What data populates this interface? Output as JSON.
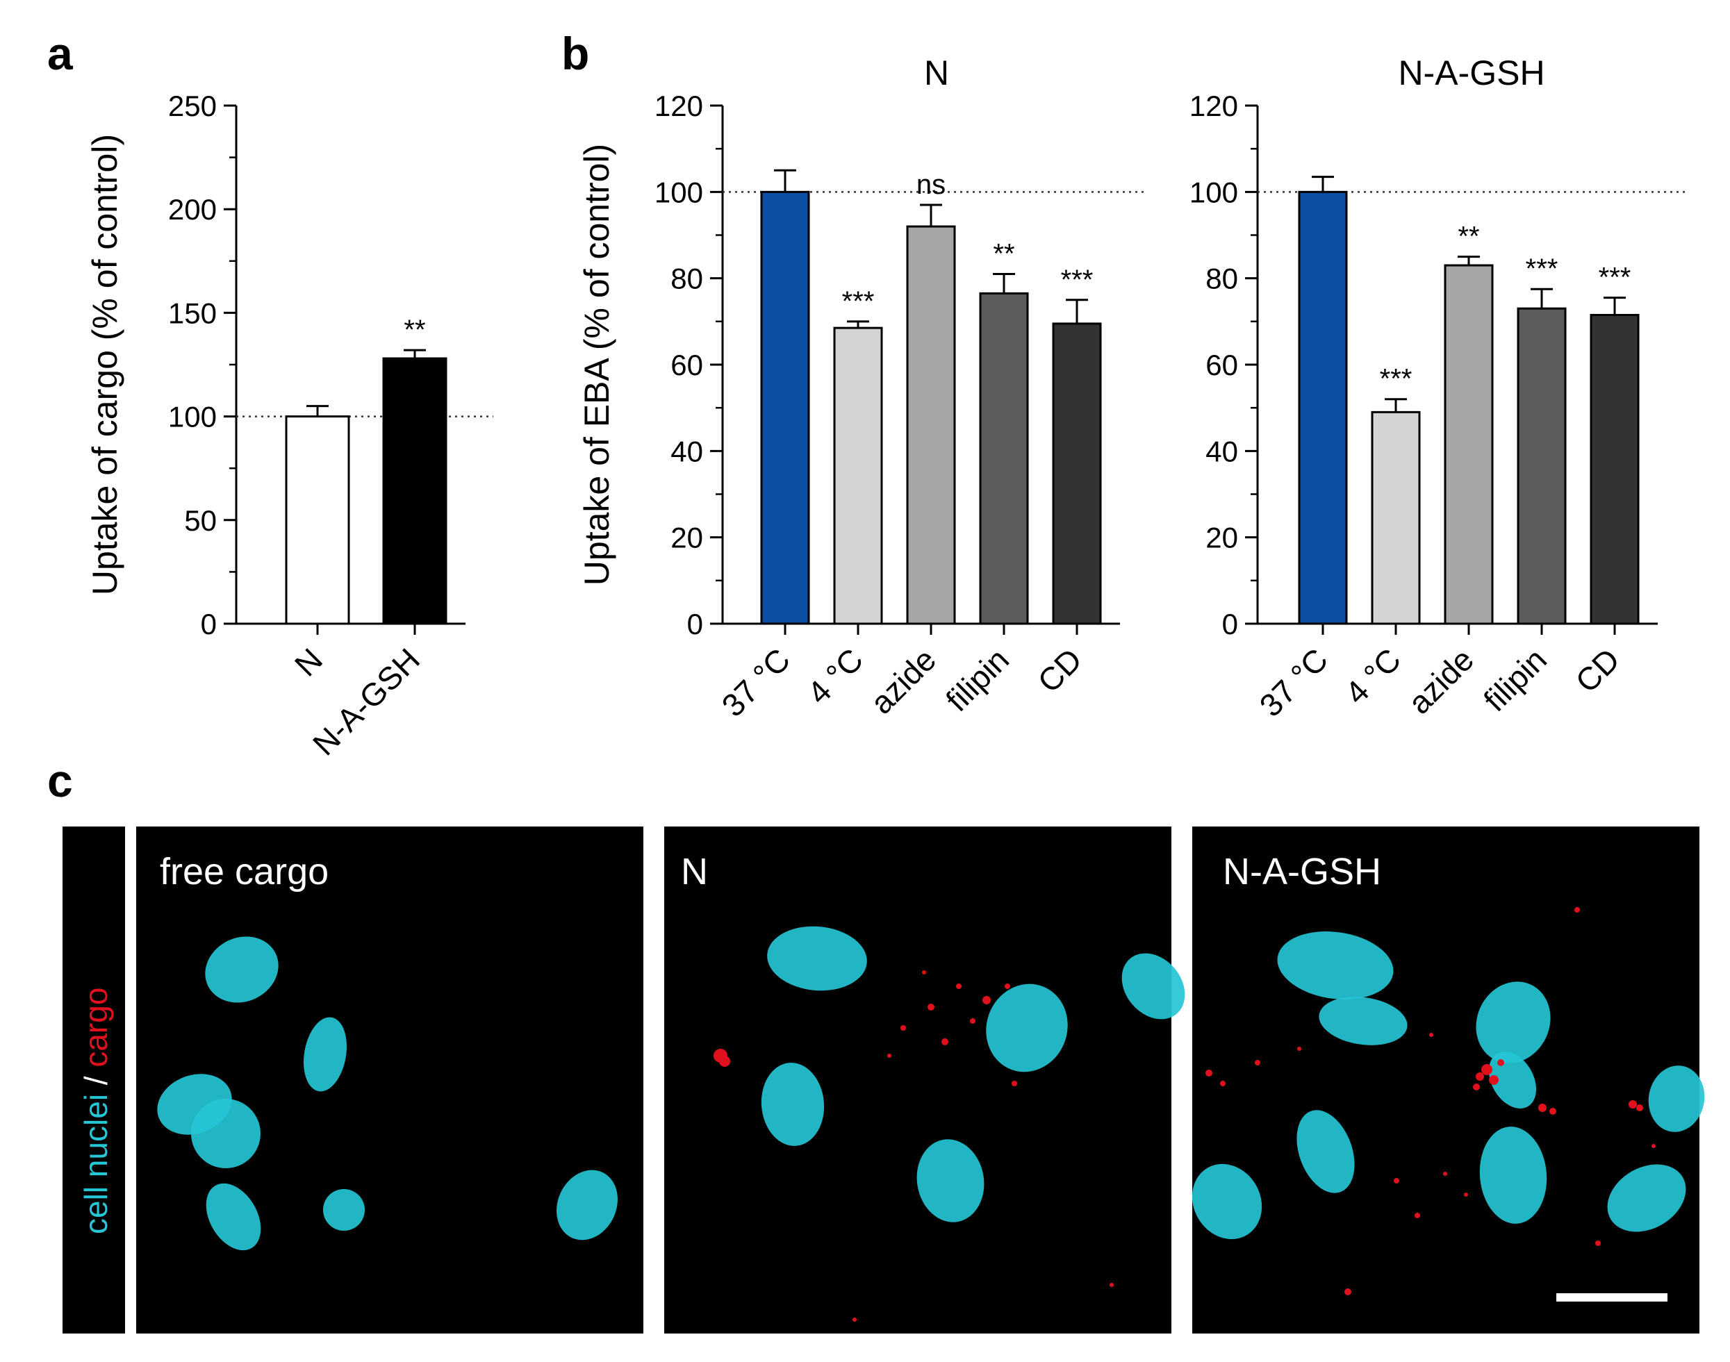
{
  "panel_labels": {
    "a": "a",
    "b": "b",
    "c": "c"
  },
  "colors": {
    "white_bar": "#ffffff",
    "black_bar": "#000000",
    "blue": "#0a4fa3",
    "light_gray": "#d4d4d4",
    "mid_gray": "#a6a6a8",
    "dark_gray": "#5c5c5c",
    "darker_gray": "#333333",
    "cyan_nuclei": "#25c6d6",
    "red_cargo": "#e0111c"
  },
  "chart_data": [
    {
      "id": "a",
      "type": "bar",
      "ylabel": "Uptake of cargo (% of control)",
      "ylim": [
        0,
        250
      ],
      "yticks": [
        0,
        50,
        100,
        150,
        200,
        250
      ],
      "categories": [
        "N",
        "N-A-GSH"
      ],
      "values": [
        100,
        128
      ],
      "errors": [
        5,
        4
      ],
      "significance": [
        "",
        "**"
      ],
      "reference_line": 100,
      "bar_colors": [
        "white_bar",
        "black_bar"
      ]
    },
    {
      "id": "b1",
      "type": "bar",
      "title": "N",
      "ylabel": "Uptake of EBA (% of control)",
      "ylim": [
        0,
        120
      ],
      "yticks": [
        0,
        20,
        40,
        60,
        80,
        100,
        120
      ],
      "categories": [
        "37 °C",
        "4 °C",
        "azide",
        "filipin",
        "CD"
      ],
      "values": [
        100,
        68.5,
        92,
        76.5,
        69.5
      ],
      "errors": [
        5,
        1.5,
        5,
        4.5,
        5.5
      ],
      "significance": [
        "",
        "***",
        "ns",
        "**",
        "***"
      ],
      "reference_line": 100,
      "bar_colors": [
        "blue",
        "light_gray",
        "mid_gray",
        "dark_gray",
        "darker_gray"
      ]
    },
    {
      "id": "b2",
      "type": "bar",
      "title": "N-A-GSH",
      "ylim": [
        0,
        120
      ],
      "yticks": [
        0,
        20,
        40,
        60,
        80,
        100,
        120
      ],
      "categories": [
        "37 °C",
        "4 °C",
        "azide",
        "filipin",
        "CD"
      ],
      "values": [
        100,
        49,
        83,
        73,
        71.5
      ],
      "errors": [
        3.5,
        3,
        2,
        4.5,
        4
      ],
      "significance": [
        "",
        "***",
        "**",
        "***",
        "***"
      ],
      "reference_line": 100,
      "bar_colors": [
        "blue",
        "light_gray",
        "mid_gray",
        "dark_gray",
        "darker_gray"
      ]
    }
  ],
  "micrographs": {
    "channel_label_part1": "cell nuclei",
    "channel_label_sep": " / ",
    "channel_label_part2": "cargo",
    "panels": [
      {
        "label": "free cargo",
        "cargo_signal": "none"
      },
      {
        "label": "N",
        "cargo_signal": "moderate"
      },
      {
        "label": "N-A-GSH",
        "cargo_signal": "high"
      }
    ]
  }
}
